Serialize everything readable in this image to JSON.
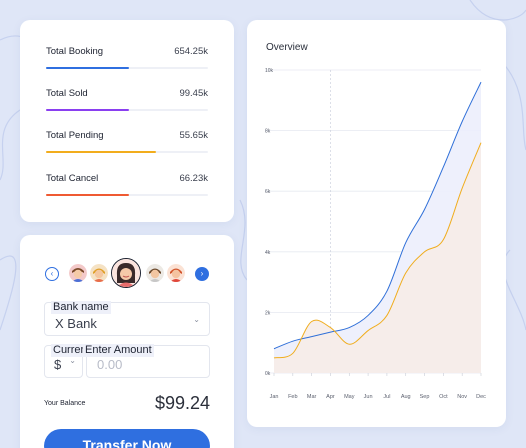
{
  "stats": {
    "items": [
      {
        "label": "Total Booking",
        "value": "654.25k",
        "progress": 0.51,
        "color": "#2f6fe0"
      },
      {
        "label": "Total Sold",
        "value": "99.45k",
        "progress": 0.51,
        "color": "#8a3ff0"
      },
      {
        "label": "Total Pending",
        "value": "55.65k",
        "progress": 0.68,
        "color": "#f2ad1d"
      },
      {
        "label": "Total Cancel",
        "value": "66.23k",
        "progress": 0.51,
        "color": "#ef5a32"
      }
    ]
  },
  "transfer": {
    "prev_icon": "‹",
    "next_icon": "›",
    "bank": {
      "label": "Bank name",
      "value": "X Bank"
    },
    "currency": {
      "label": "Currency",
      "value": "$"
    },
    "amount": {
      "label": "Enter Amount",
      "value": "0.00"
    },
    "balance_label": "Your Balance",
    "balance_value": "$99.24",
    "button_label": "Transfer Now",
    "accent_color": "#2f6fe0"
  },
  "overview": {
    "title": "Overview"
  },
  "chart_data": {
    "type": "line",
    "title": "Overview",
    "categories": [
      "Jan",
      "Feb",
      "Mar",
      "Apr",
      "May",
      "Jun",
      "Jul",
      "Aug",
      "Sep",
      "Oct",
      "Nov",
      "Dec"
    ],
    "y_tick_labels": [
      "0k",
      "2k",
      "4k",
      "6k",
      "8k",
      "10k"
    ],
    "ylim": [
      0,
      10000
    ],
    "grid": "horizontal",
    "series": [
      {
        "color": "#2f6fd8",
        "fill": "#eceefc",
        "values": [
          800,
          1050,
          1200,
          1350,
          1500,
          1900,
          2700,
          4300,
          5400,
          6800,
          8300,
          9600
        ]
      },
      {
        "color": "#f0ad1e",
        "fill": "#f6ece8",
        "values": [
          500,
          650,
          1700,
          1500,
          950,
          1400,
          1900,
          3300,
          4000,
          4400,
          6100,
          7600
        ]
      }
    ]
  }
}
